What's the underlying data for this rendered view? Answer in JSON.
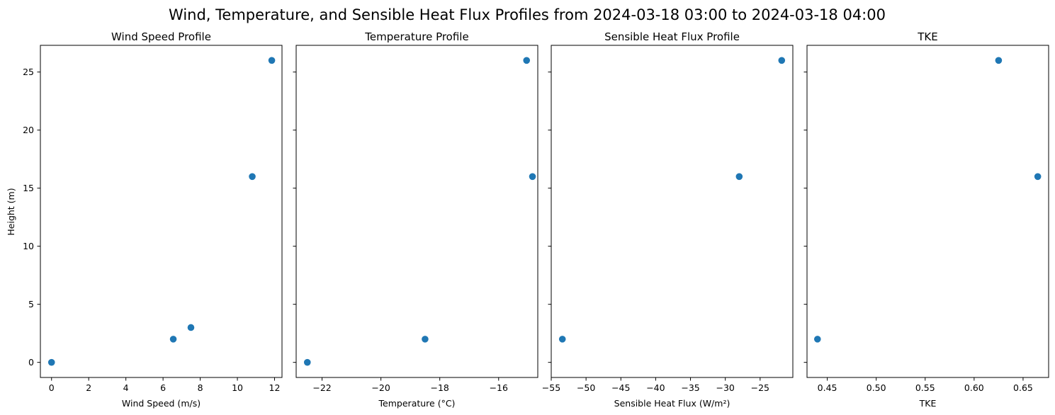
{
  "suptitle": "Wind, Temperature, and Sensible Heat Flux Profiles from 2024-03-18 03:00 to 2024-03-18 04:00",
  "ylabel": "Height (m)",
  "marker_color": "#1f77b4",
  "y_ticks": [
    0,
    5,
    10,
    15,
    20,
    25
  ],
  "ylim": [
    -1.3,
    27.3
  ],
  "chart_data": [
    {
      "type": "scatter",
      "title": "Wind Speed Profile",
      "xlabel": "Wind Speed (m/s)",
      "xlim": [
        -0.6,
        12.4
      ],
      "x_ticks": [
        0,
        2,
        4,
        6,
        8,
        10,
        12
      ],
      "x_tick_labels": [
        "0",
        "2",
        "4",
        "6",
        "8",
        "10",
        "12"
      ],
      "x": [
        0.0,
        6.55,
        7.5,
        10.8,
        11.85
      ],
      "y": [
        0,
        2,
        3,
        16,
        26
      ]
    },
    {
      "type": "scatter",
      "title": "Temperature Profile",
      "xlabel": "Temperature (°C)",
      "xlim": [
        -22.88,
        -14.67
      ],
      "x_ticks": [
        -22,
        -20,
        -18,
        -16
      ],
      "x_tick_labels": [
        "−22",
        "−20",
        "−18",
        "−16"
      ],
      "x": [
        -22.5,
        -18.5,
        -14.85,
        -15.05
      ],
      "y": [
        0,
        2,
        16,
        26
      ]
    },
    {
      "type": "scatter",
      "title": "Sensible Heat Flux Profile",
      "xlabel": "Sensible Heat Flux (W/m²)",
      "xlim": [
        -55.0,
        -20.3
      ],
      "x_ticks": [
        -55,
        -50,
        -45,
        -40,
        -35,
        -30,
        -25
      ],
      "x_tick_labels": [
        "−55",
        "−50",
        "−45",
        "−40",
        "−35",
        "−30",
        "−25"
      ],
      "x": [
        -53.4,
        -28.0,
        -21.9
      ],
      "y": [
        2,
        16,
        26
      ]
    },
    {
      "type": "scatter",
      "title": "TKE",
      "xlabel": "TKE",
      "xlim": [
        0.4293,
        0.6761
      ],
      "x_ticks": [
        0.45,
        0.5,
        0.55,
        0.6,
        0.65
      ],
      "x_tick_labels": [
        "0.45",
        "0.50",
        "0.55",
        "0.60",
        "0.65"
      ],
      "x": [
        0.44,
        0.665,
        0.625
      ],
      "y": [
        2,
        16,
        26
      ]
    }
  ]
}
